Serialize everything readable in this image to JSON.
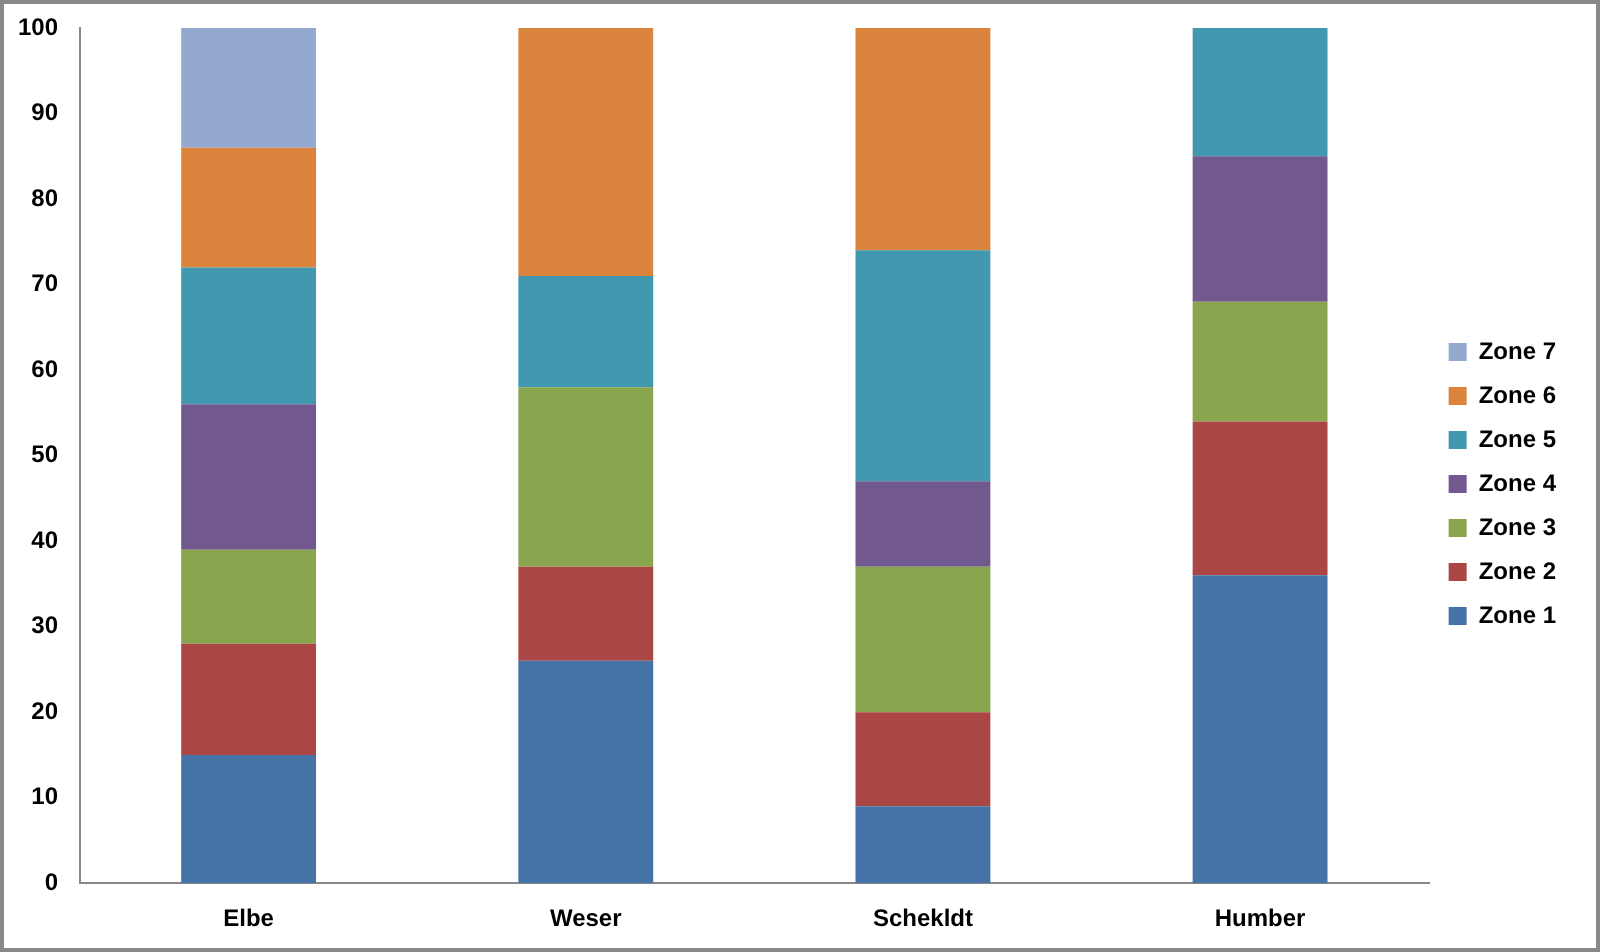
{
  "chart_data": {
    "type": "bar",
    "stacked": true,
    "categories": [
      "Elbe",
      "Weser",
      "Schekldt",
      "Humber"
    ],
    "series": [
      {
        "name": "Zone 1",
        "color": "#4572a7",
        "values": [
          15,
          26,
          9,
          36
        ]
      },
      {
        "name": "Zone 2",
        "color": "#aa4643",
        "values": [
          13,
          11,
          11,
          18
        ]
      },
      {
        "name": "Zone 3",
        "color": "#89a54e",
        "values": [
          11,
          21,
          17,
          14
        ]
      },
      {
        "name": "Zone 4",
        "color": "#71588f",
        "values": [
          17,
          0,
          10,
          17
        ]
      },
      {
        "name": "Zone 5",
        "color": "#4198af",
        "values": [
          16,
          13,
          27,
          15
        ]
      },
      {
        "name": "Zone 6",
        "color": "#db843d",
        "values": [
          14,
          29,
          26,
          0
        ]
      },
      {
        "name": "Zone 7",
        "color": "#93a9cf",
        "values": [
          14,
          0,
          0,
          0
        ]
      }
    ],
    "ylim": [
      0,
      100
    ],
    "yticks": [
      0,
      10,
      20,
      30,
      40,
      50,
      60,
      70,
      80,
      90,
      100
    ],
    "grid": false,
    "legend": "right"
  }
}
